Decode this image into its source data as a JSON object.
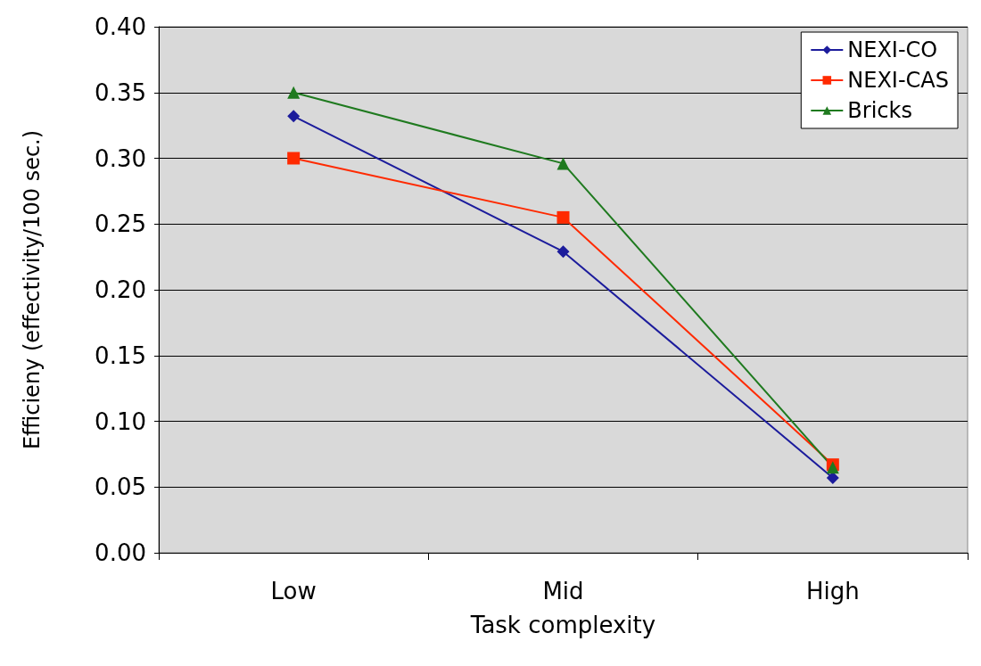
{
  "chart_data": {
    "type": "line",
    "xlabel": "Task complexity",
    "ylabel": "Efficieny (effectivity/100 sec.)",
    "categories": [
      "Low",
      "Mid",
      "High"
    ],
    "series": [
      {
        "name": "NEXI-CO",
        "color": "#1c1c9c",
        "marker": "diamond",
        "values": [
          0.332,
          0.229,
          0.057
        ]
      },
      {
        "name": "NEXI-CAS",
        "color": "#ff2a00",
        "marker": "square",
        "values": [
          0.3,
          0.255,
          0.067
        ]
      },
      {
        "name": "Bricks",
        "color": "#1f7a1f",
        "marker": "triangle",
        "values": [
          0.35,
          0.296,
          0.065
        ]
      }
    ],
    "ylim": [
      0,
      0.4
    ],
    "yticks": [
      {
        "value": 0,
        "label": "0.00"
      },
      {
        "value": 0.05,
        "label": "0.05"
      },
      {
        "value": 0.1,
        "label": "0.10"
      },
      {
        "value": 0.15,
        "label": "0.15"
      },
      {
        "value": 0.2,
        "label": "0.20"
      },
      {
        "value": 0.25,
        "label": "0.25"
      },
      {
        "value": 0.3,
        "label": "0.30"
      },
      {
        "value": 0.35,
        "label": "0.35"
      },
      {
        "value": 0.4,
        "label": "0.40"
      }
    ],
    "grid": "y",
    "legend": "top right",
    "line_style": "solid"
  }
}
